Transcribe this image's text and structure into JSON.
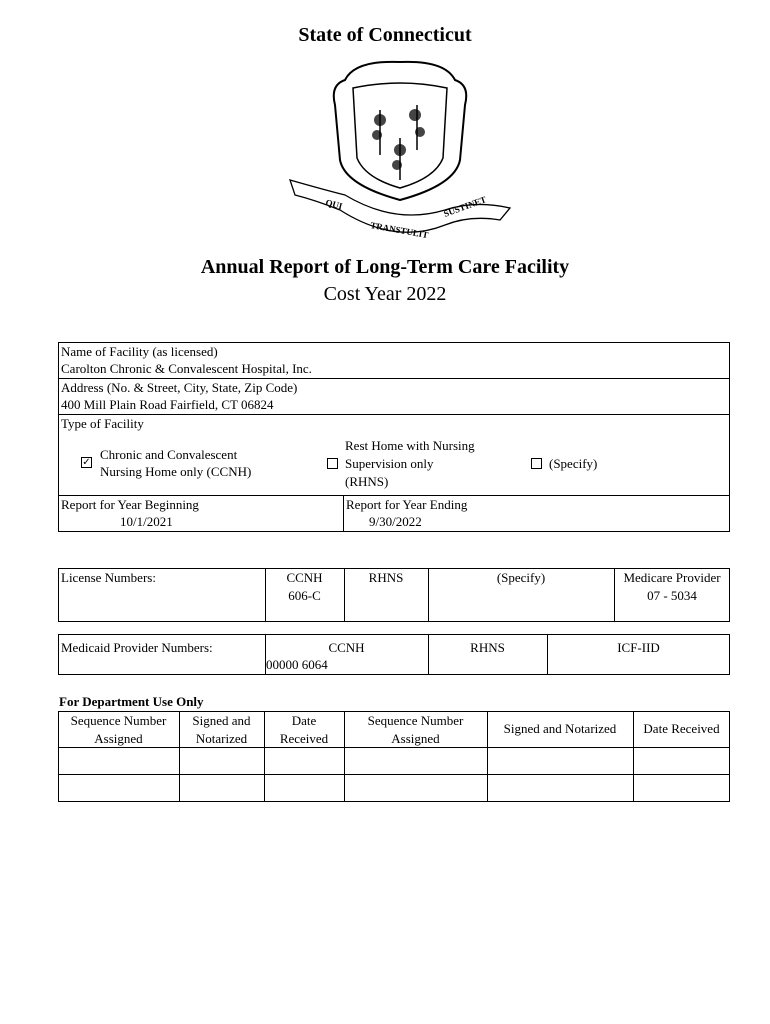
{
  "header": {
    "state_title": "State of Connecticut",
    "seal_motto": "QUI TRANSTULIT SUSTINET",
    "report_title": "Annual Report of Long-Term Care Facility",
    "cost_year": "Cost Year 2022"
  },
  "facility": {
    "name_label": "Name of Facility (as licensed)",
    "name_value": "Carolton Chronic & Convalescent Hospital, Inc.",
    "address_label": "Address (No. & Street, City, State, Zip Code)",
    "address_value": "400 Mill Plain Road Fairfield, CT 06824",
    "type_label": "Type of Facility",
    "types": [
      {
        "line1": "Chronic and Convalescent",
        "line2": "Nursing Home only (CCNH)",
        "checked": true
      },
      {
        "line1": "Rest Home with Nursing",
        "line2": "Supervision only",
        "line3": "(RHNS)",
        "checked": false
      },
      {
        "line1": "(Specify)",
        "checked": false
      }
    ],
    "year_begin_label": "Report for Year Beginning",
    "year_begin_value": "10/1/2021",
    "year_end_label": "Report for Year Ending",
    "year_end_value": "9/30/2022"
  },
  "license": {
    "label": "License Numbers:",
    "ccnh_label": "CCNH",
    "ccnh_value": "606-C",
    "rhns_label": "RHNS",
    "specify_label": "(Specify)",
    "medicare_label": "Medicare Provider",
    "medicare_value": "07 - 5034"
  },
  "medicaid": {
    "label": "Medicaid Provider Numbers:",
    "ccnh_label": "CCNH",
    "ccnh_value": "00000 6064",
    "rhns_label": "RHNS",
    "icf_label": "ICF-IID"
  },
  "department": {
    "heading": "For Department Use Only",
    "columns": [
      "Sequence Number\nAssigned",
      "Signed and\nNotarized",
      "Date\nReceived",
      "Sequence Number\nAssigned",
      "Signed and Notarized",
      "Date Received"
    ]
  }
}
